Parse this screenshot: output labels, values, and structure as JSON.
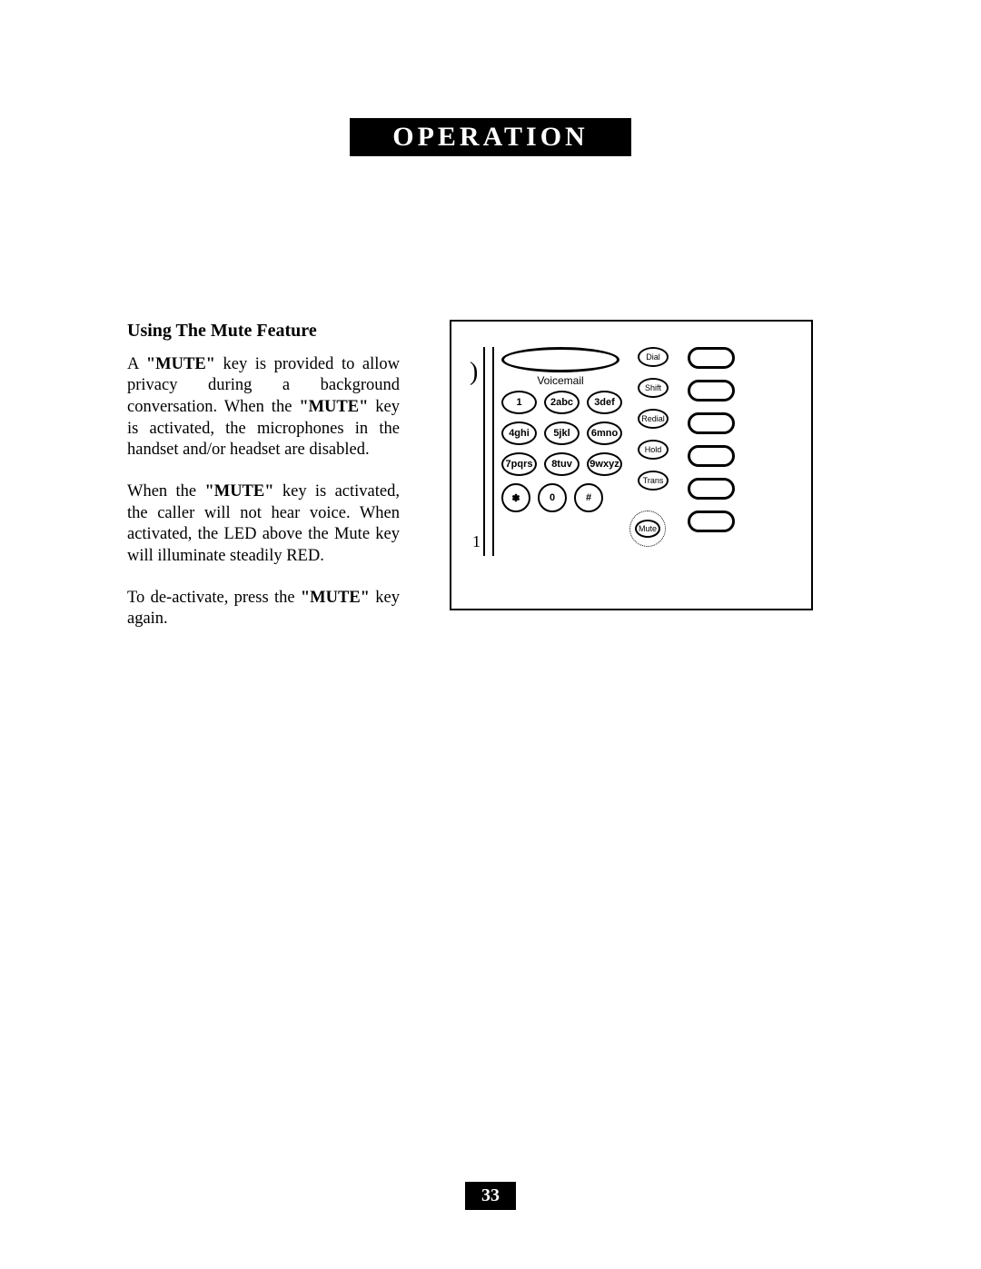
{
  "header": {
    "title": "OPERATION"
  },
  "section": {
    "heading": "Using The Mute Feature",
    "para1_a": "A ",
    "para1_kw1": "\"MUTE\"",
    "para1_b": " key is provided to allow privacy during a background conversation. When  the ",
    "para1_kw2": "\"MUTE\"",
    "para1_c": " key is activated, the microphones in the handset and/or headset are disabled.",
    "para2_a": "When the ",
    "para2_kw1": "\"MUTE\"",
    "para2_b": " key is activated, the caller will not hear voice. When activated, the LED above the Mute key will illuminate steadily RED.",
    "para3_a": "To de-activate, press the ",
    "para3_kw1": "\"MUTE\"",
    "para3_b": " key again."
  },
  "keypad": {
    "voicemail_label": "Voicemail",
    "keys": [
      "1",
      "2abc",
      "3def",
      "4ghi",
      "5jkl",
      "6mno",
      "7pqrs",
      "8tuv",
      "9wxyz",
      "✽",
      "0",
      "#"
    ],
    "side_keys": [
      "Dial",
      "Shift",
      "Redial",
      "Hold",
      "Trans"
    ],
    "mute_label": "Mute",
    "edge_mark": ")",
    "corner_mark": "1"
  },
  "page_number": "33",
  "colors": {
    "bg": "#ffffff",
    "ink": "#000000"
  }
}
